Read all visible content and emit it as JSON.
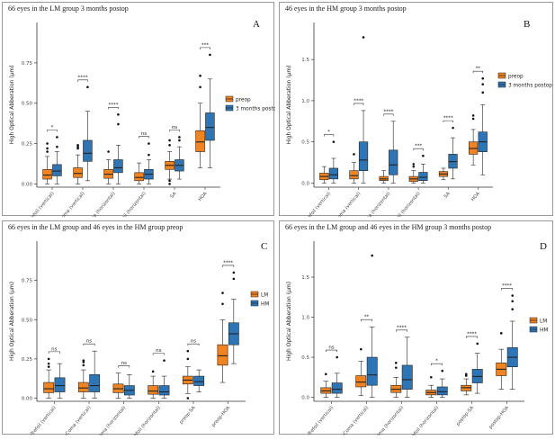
{
  "colors": {
    "orange": "#F08322",
    "blue": "#2E75B6",
    "median": "#222222",
    "axis": "#333333"
  },
  "chart_data": [
    {
      "type": "boxplot",
      "letter": "A",
      "title": "66 eyes in the LM group 3 months postop",
      "ylabel": "High Optical Abberation (μm)",
      "ylim": [
        -0.02,
        1.0
      ],
      "yticks": [
        0.0,
        0.25,
        0.5,
        0.75
      ],
      "ytick_labels": [
        "0.00",
        "0.25",
        "0.50",
        "0.75"
      ],
      "categories": [
        "Trefoil (vertical)",
        "Coma (vertical)",
        "Coma (horizontal)",
        "Trefoil (horizontal)",
        "SA",
        "HOA"
      ],
      "legend": [
        "preop",
        "3 months postop"
      ],
      "legend_position": "right",
      "series": [
        {
          "name": "preop",
          "color": "orange",
          "boxes": [
            {
              "min": 0.0,
              "q1": 0.03,
              "med": 0.055,
              "q3": 0.09,
              "max": 0.17,
              "out": [
                0.2,
                0.22,
                0.25
              ]
            },
            {
              "min": 0.0,
              "q1": 0.04,
              "med": 0.065,
              "q3": 0.1,
              "max": 0.18,
              "out": [
                0.22,
                0.23,
                0.24
              ]
            },
            {
              "min": 0.0,
              "q1": 0.035,
              "med": 0.06,
              "q3": 0.09,
              "max": 0.15,
              "out": [
                0.2
              ]
            },
            {
              "min": 0.0,
              "q1": 0.02,
              "med": 0.04,
              "q3": 0.07,
              "max": 0.13,
              "out": []
            },
            {
              "min": 0.03,
              "q1": 0.09,
              "med": 0.115,
              "q3": 0.14,
              "max": 0.2,
              "out": [
                0.0,
                0.02,
                0.24,
                0.27
              ]
            },
            {
              "min": 0.1,
              "q1": 0.2,
              "med": 0.26,
              "q3": 0.33,
              "max": 0.5,
              "out": [
                0.6,
                0.67
              ]
            }
          ]
        },
        {
          "name": "3 months postop",
          "color": "blue",
          "boxes": [
            {
              "min": 0.0,
              "q1": 0.05,
              "med": 0.08,
              "q3": 0.12,
              "max": 0.2,
              "out": [
                0.23,
                0.29
              ]
            },
            {
              "min": 0.02,
              "q1": 0.14,
              "med": 0.19,
              "q3": 0.27,
              "max": 0.45,
              "out": [
                0.6
              ]
            },
            {
              "min": 0.0,
              "q1": 0.07,
              "med": 0.1,
              "q3": 0.15,
              "max": 0.24,
              "out": [
                0.37,
                0.43
              ]
            },
            {
              "min": 0.0,
              "q1": 0.03,
              "med": 0.06,
              "q3": 0.09,
              "max": 0.15,
              "out": [
                0.18,
                0.25
              ]
            },
            {
              "min": 0.03,
              "q1": 0.08,
              "med": 0.115,
              "q3": 0.15,
              "max": 0.23,
              "out": [
                0.27,
                0.29
              ]
            },
            {
              "min": 0.1,
              "q1": 0.27,
              "med": 0.35,
              "q3": 0.44,
              "max": 0.65,
              "out": [
                0.8
              ]
            }
          ]
        }
      ],
      "significance": [
        "*",
        "****",
        "****",
        "ns",
        "ns",
        "***"
      ]
    },
    {
      "type": "boxplot",
      "letter": "B",
      "title": "46 eyes in the HM group 3 months postop",
      "ylabel": "High Optical Abberation (μm)",
      "ylim": [
        -0.05,
        1.95
      ],
      "yticks": [
        0.0,
        0.5,
        1.0,
        1.5
      ],
      "ytick_labels": [
        "0.0",
        "0.5",
        "1.0",
        "1.5"
      ],
      "categories": [
        "Trefoil (vertical)",
        "Coma (vertical)",
        "Coma (horizontal)",
        "Trefoil (horizontal)",
        "SA",
        "HOA"
      ],
      "legend": [
        "preop",
        "3 months postop"
      ],
      "legend_position": "right",
      "series": [
        {
          "name": "preop",
          "color": "orange",
          "boxes": [
            {
              "min": 0.0,
              "q1": 0.04,
              "med": 0.08,
              "q3": 0.12,
              "max": 0.2,
              "out": []
            },
            {
              "min": 0.0,
              "q1": 0.05,
              "med": 0.09,
              "q3": 0.15,
              "max": 0.25,
              "out": [
                0.35
              ]
            },
            {
              "min": 0.0,
              "q1": 0.03,
              "med": 0.05,
              "q3": 0.08,
              "max": 0.15,
              "out": []
            },
            {
              "min": 0.0,
              "q1": 0.02,
              "med": 0.05,
              "q3": 0.08,
              "max": 0.15,
              "out": [
                0.2,
                0.23
              ]
            },
            {
              "min": 0.04,
              "q1": 0.08,
              "med": 0.11,
              "q3": 0.14,
              "max": 0.18,
              "out": []
            },
            {
              "min": 0.22,
              "q1": 0.35,
              "med": 0.42,
              "q3": 0.5,
              "max": 0.65,
              "out": [
                0.78,
                0.82
              ]
            }
          ]
        },
        {
          "name": "3 months postop",
          "color": "blue",
          "boxes": [
            {
              "min": 0.0,
              "q1": 0.05,
              "med": 0.1,
              "q3": 0.18,
              "max": 0.3,
              "out": [
                0.5
              ]
            },
            {
              "min": 0.0,
              "q1": 0.15,
              "med": 0.28,
              "q3": 0.5,
              "max": 0.88,
              "out": [
                1.77
              ]
            },
            {
              "min": 0.0,
              "q1": 0.1,
              "med": 0.22,
              "q3": 0.4,
              "max": 0.75,
              "out": []
            },
            {
              "min": 0.0,
              "q1": 0.03,
              "med": 0.07,
              "q3": 0.13,
              "max": 0.23,
              "out": [
                0.33
              ]
            },
            {
              "min": 0.05,
              "q1": 0.18,
              "med": 0.26,
              "q3": 0.35,
              "max": 0.55,
              "out": [
                0.67
              ]
            },
            {
              "min": 0.1,
              "q1": 0.38,
              "med": 0.5,
              "q3": 0.62,
              "max": 0.95,
              "out": [
                1.1,
                1.2,
                1.27
              ]
            }
          ]
        }
      ],
      "significance": [
        "*",
        "****",
        "****",
        "***",
        "****",
        "**"
      ]
    },
    {
      "type": "boxplot",
      "letter": "C",
      "title": "66 eyes in the LM group and 46 eyes in the HM group preop",
      "ylabel": "High Optical Abberation (μm)",
      "ylim": [
        -0.02,
        1.0
      ],
      "yticks": [
        0.0,
        0.25,
        0.5,
        0.75
      ],
      "ytick_labels": [
        "0.00",
        "0.25",
        "0.50",
        "0.75"
      ],
      "categories": [
        "preop-Trefoil (vertical)",
        "preop-Coma (vertical)",
        "preop-Coma (horizontal)",
        "preop-Trefoil (horizontal)",
        "preop-SA",
        "preop-HOA"
      ],
      "legend": [
        "LM",
        "HM"
      ],
      "legend_position": "right",
      "series": [
        {
          "name": "LM",
          "color": "orange",
          "boxes": [
            {
              "min": 0.0,
              "q1": 0.035,
              "med": 0.06,
              "q3": 0.1,
              "max": 0.18,
              "out": [
                0.2,
                0.22,
                0.25
              ]
            },
            {
              "min": 0.0,
              "q1": 0.04,
              "med": 0.065,
              "q3": 0.1,
              "max": 0.18,
              "out": [
                0.21,
                0.23,
                0.24
              ]
            },
            {
              "min": 0.0,
              "q1": 0.035,
              "med": 0.06,
              "q3": 0.09,
              "max": 0.16,
              "out": []
            },
            {
              "min": 0.0,
              "q1": 0.025,
              "med": 0.045,
              "q3": 0.08,
              "max": 0.14,
              "out": [
                0.17
              ]
            },
            {
              "min": 0.03,
              "q1": 0.09,
              "med": 0.115,
              "q3": 0.14,
              "max": 0.2,
              "out": [
                0.0,
                0.25,
                0.3
              ]
            },
            {
              "min": 0.1,
              "q1": 0.21,
              "med": 0.27,
              "q3": 0.34,
              "max": 0.5,
              "out": [
                0.6,
                0.67
              ]
            }
          ]
        },
        {
          "name": "HM",
          "color": "blue",
          "boxes": [
            {
              "min": 0.0,
              "q1": 0.04,
              "med": 0.08,
              "q3": 0.13,
              "max": 0.22,
              "out": []
            },
            {
              "min": 0.0,
              "q1": 0.04,
              "med": 0.08,
              "q3": 0.15,
              "max": 0.3,
              "out": []
            },
            {
              "min": 0.0,
              "q1": 0.02,
              "med": 0.05,
              "q3": 0.08,
              "max": 0.15,
              "out": []
            },
            {
              "min": 0.0,
              "q1": 0.02,
              "med": 0.04,
              "q3": 0.08,
              "max": 0.14,
              "out": [
                0.24
              ]
            },
            {
              "min": 0.04,
              "q1": 0.08,
              "med": 0.105,
              "q3": 0.14,
              "max": 0.18,
              "out": []
            },
            {
              "min": 0.22,
              "q1": 0.34,
              "med": 0.41,
              "q3": 0.48,
              "max": 0.63,
              "out": [
                0.76,
                0.8
              ]
            }
          ]
        }
      ],
      "significance": [
        "ns",
        "ns",
        "ns",
        "ns",
        "ns",
        "****"
      ]
    },
    {
      "type": "boxplot",
      "letter": "D",
      "title": "66 eyes in the LM group and 46 eyes in the HM group 3 months postop",
      "ylabel": "High Optical Abberation (μm)",
      "ylim": [
        -0.05,
        1.95
      ],
      "yticks": [
        0.0,
        0.5,
        1.0,
        1.5
      ],
      "ytick_labels": [
        "0.0",
        "0.5",
        "1.0",
        "1.5"
      ],
      "categories": [
        "postop-Trefoil (vertical)",
        "postop-Coma (vertical)",
        "postop-Coma (horizontal)",
        "postop-Trefoil (horizontal)",
        "postop-SA",
        "postop-HOA"
      ],
      "legend": [
        "LM",
        "HM"
      ],
      "legend_position": "right",
      "series": [
        {
          "name": "LM",
          "color": "orange",
          "boxes": [
            {
              "min": 0.0,
              "q1": 0.05,
              "med": 0.08,
              "q3": 0.12,
              "max": 0.2,
              "out": [
                0.29
              ]
            },
            {
              "min": 0.02,
              "q1": 0.13,
              "med": 0.19,
              "q3": 0.27,
              "max": 0.45,
              "out": [
                0.6
              ]
            },
            {
              "min": 0.0,
              "q1": 0.06,
              "med": 0.1,
              "q3": 0.15,
              "max": 0.25,
              "out": [
                0.37,
                0.43
              ]
            },
            {
              "min": 0.0,
              "q1": 0.03,
              "med": 0.06,
              "q3": 0.09,
              "max": 0.15,
              "out": [
                0.25
              ]
            },
            {
              "min": 0.03,
              "q1": 0.08,
              "med": 0.12,
              "q3": 0.15,
              "max": 0.23,
              "out": [
                0.27,
                0.29
              ]
            },
            {
              "min": 0.1,
              "q1": 0.27,
              "med": 0.35,
              "q3": 0.43,
              "max": 0.6,
              "out": [
                0.8
              ]
            }
          ]
        },
        {
          "name": "HM",
          "color": "blue",
          "boxes": [
            {
              "min": 0.0,
              "q1": 0.05,
              "med": 0.1,
              "q3": 0.18,
              "max": 0.3,
              "out": [
                0.5
              ]
            },
            {
              "min": 0.0,
              "q1": 0.15,
              "med": 0.28,
              "q3": 0.5,
              "max": 0.88,
              "out": [
                1.77
              ]
            },
            {
              "min": 0.0,
              "q1": 0.1,
              "med": 0.22,
              "q3": 0.4,
              "max": 0.75,
              "out": []
            },
            {
              "min": 0.0,
              "q1": 0.03,
              "med": 0.07,
              "q3": 0.13,
              "max": 0.23,
              "out": [
                0.33
              ]
            },
            {
              "min": 0.05,
              "q1": 0.18,
              "med": 0.26,
              "q3": 0.35,
              "max": 0.55,
              "out": [
                0.67
              ]
            },
            {
              "min": 0.1,
              "q1": 0.38,
              "med": 0.5,
              "q3": 0.62,
              "max": 0.95,
              "out": [
                1.1,
                1.2,
                1.27
              ]
            }
          ]
        }
      ],
      "significance": [
        "ns",
        "**",
        "****",
        "*",
        "****",
        "****"
      ]
    }
  ]
}
